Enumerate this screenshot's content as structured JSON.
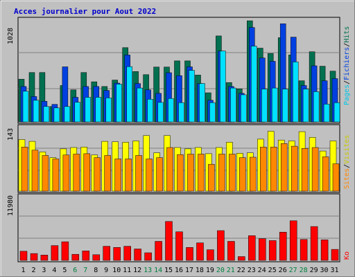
{
  "title": "Acces journalier pour Aout 2022",
  "colors": {
    "background": "#c0c0c0",
    "title": "#0000cc",
    "hits": "#007050",
    "files": "#0040e0",
    "pages": "#00e0ff",
    "visits": "#ffff00",
    "sites": "#ff8800",
    "kb": "#ff0000",
    "weekend_label": "#008040",
    "text": "#000000"
  },
  "right_labels": {
    "top": [
      "Pages",
      "/",
      "Fichiers",
      "/",
      "Hits"
    ],
    "middle": [
      "Sites",
      "/",
      "Visites"
    ],
    "bottom": [
      "Ko"
    ]
  },
  "chart_data": [
    {
      "type": "bar",
      "name": "hits-files-pages",
      "y_tick_label": "1028",
      "ymax": 1028,
      "categories": [
        "1",
        "2",
        "3",
        "4",
        "5",
        "6",
        "7",
        "8",
        "9",
        "10",
        "11",
        "12",
        "13",
        "14",
        "15",
        "16",
        "17",
        "18",
        "19",
        "20",
        "21",
        "22",
        "23",
        "24",
        "25",
        "26",
        "27",
        "28",
        "29",
        "30",
        "31"
      ],
      "series": [
        {
          "name": "Hits",
          "values": [
            434,
            502,
            502,
            156,
            370,
            326,
            502,
            408,
            360,
            425,
            755,
            512,
            480,
            558,
            558,
            620,
            620,
            476,
            296,
            874,
            400,
            336,
            1028,
            750,
            696,
            856,
            680,
            418,
            713,
            566,
            516
          ]
        },
        {
          "name": "Fichiers",
          "values": [
            360,
            258,
            210,
            178,
            560,
            250,
            360,
            360,
            320,
            394,
            680,
            390,
            326,
            290,
            500,
            470,
            560,
            390,
            220,
            720,
            360,
            290,
            960,
            650,
            616,
            998,
            862,
            370,
            570,
            418,
            440
          ]
        },
        {
          "name": "Pages",
          "values": [
            312,
            220,
            156,
            142,
            156,
            200,
            250,
            250,
            244,
            384,
            562,
            344,
            230,
            198,
            238,
            196,
            524,
            390,
            196,
            720,
            344,
            275,
            770,
            334,
            344,
            334,
            610,
            334,
            308,
            180,
            196
          ]
        }
      ]
    },
    {
      "type": "bar",
      "name": "visits-sites",
      "y_tick_label": "143",
      "ymax": 143,
      "categories": [
        "1",
        "2",
        "3",
        "4",
        "5",
        "6",
        "7",
        "8",
        "9",
        "10",
        "11",
        "12",
        "13",
        "14",
        "15",
        "16",
        "17",
        "18",
        "19",
        "20",
        "21",
        "22",
        "23",
        "24",
        "25",
        "26",
        "27",
        "28",
        "29",
        "30",
        "31"
      ],
      "series": [
        {
          "name": "Visites",
          "values": [
            117,
            113,
            89,
            76,
            96,
            99,
            100,
            82,
            113,
            112,
            111,
            114,
            126,
            87,
            126,
            99,
            96,
            99,
            85,
            99,
            111,
            86,
            87,
            118,
            136,
            116,
            114,
            135,
            122,
            91,
            114
          ]
        },
        {
          "name": "Sites",
          "values": [
            100,
            93,
            81,
            73,
            82,
            84,
            85,
            76,
            81,
            73,
            73,
            81,
            73,
            76,
            99,
            83,
            84,
            84,
            61,
            84,
            84,
            76,
            77,
            100,
            100,
            108,
            102,
            97,
            99,
            78,
            62
          ]
        }
      ]
    },
    {
      "type": "bar",
      "name": "kb",
      "y_tick_label": "11980",
      "ymax": 11980,
      "categories": [
        "1",
        "2",
        "3",
        "4",
        "5",
        "6",
        "7",
        "8",
        "9",
        "10",
        "11",
        "12",
        "13",
        "14",
        "15",
        "16",
        "17",
        "18",
        "19",
        "20",
        "21",
        "22",
        "23",
        "24",
        "25",
        "26",
        "27",
        "28",
        "29",
        "30",
        "31"
      ],
      "series": [
        {
          "name": "Ko",
          "values": [
            2470,
            1860,
            1440,
            4010,
            5040,
            1650,
            2570,
            1540,
            3810,
            3500,
            3810,
            3090,
            2060,
            5150,
            10520,
            7730,
            3500,
            4740,
            2880,
            8040,
            5150,
            1030,
            6690,
            5870,
            5350,
            7630,
            10710,
            5660,
            9160,
            5560,
            2980
          ]
        }
      ]
    }
  ],
  "x_axis": {
    "labels": [
      "1",
      "2",
      "3",
      "4",
      "5",
      "6",
      "7",
      "8",
      "9",
      "10",
      "11",
      "12",
      "13",
      "14",
      "15",
      "16",
      "17",
      "18",
      "19",
      "20",
      "21",
      "22",
      "23",
      "24",
      "25",
      "26",
      "27",
      "28",
      "29",
      "30",
      "31"
    ],
    "weekend_days": [
      "6",
      "7",
      "13",
      "14",
      "20",
      "21",
      "27",
      "28"
    ]
  }
}
